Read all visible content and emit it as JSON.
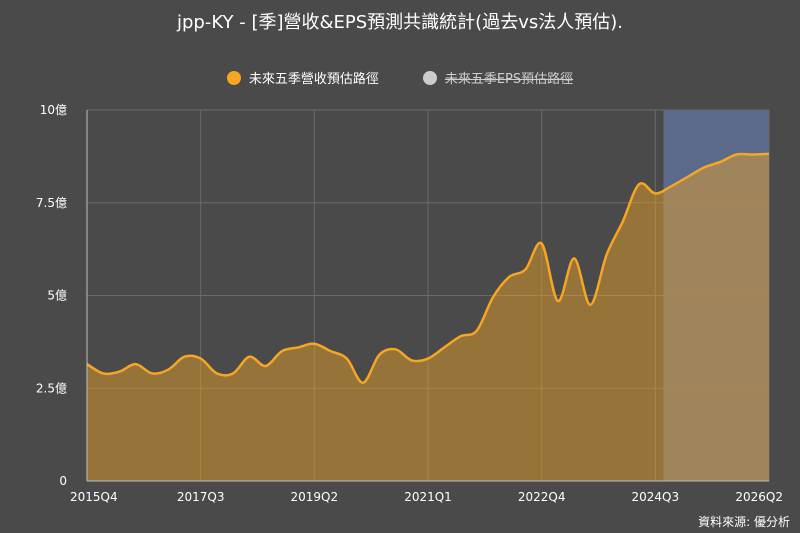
{
  "chart_data": {
    "type": "area",
    "title": "jpp-KY - [季]營收&EPS預測共識統計(過去vs法人預估).",
    "legend": [
      {
        "name": "未來五季營收預估路徑",
        "color": "#f5a623",
        "hidden": false
      },
      {
        "name": "未來五季EPS預估路徑",
        "color": "#cccccc",
        "hidden": true
      }
    ],
    "x_tick_labels": [
      "2015Q4",
      "2017Q3",
      "2019Q2",
      "2021Q1",
      "2022Q4",
      "2024Q3",
      "2026Q2"
    ],
    "y_tick_labels": [
      "0",
      "2.5億",
      "5億",
      "7.5億",
      "10億"
    ],
    "y_range": [
      0,
      10
    ],
    "y_unit": "億",
    "grid": true,
    "forecast_start": "2024Q4",
    "forecast_end": "2026Q2",
    "series": [
      {
        "name": "未來五季營收預估路徑",
        "color": "#f5a623",
        "x": [
          "2015Q4",
          "2016Q1",
          "2016Q2",
          "2016Q3",
          "2016Q4",
          "2017Q1",
          "2017Q2",
          "2017Q3",
          "2017Q4",
          "2018Q1",
          "2018Q2",
          "2018Q3",
          "2018Q4",
          "2019Q1",
          "2019Q2",
          "2019Q3",
          "2019Q4",
          "2020Q1",
          "2020Q2",
          "2020Q3",
          "2020Q4",
          "2021Q1",
          "2021Q2",
          "2021Q3",
          "2021Q4",
          "2022Q1",
          "2022Q2",
          "2022Q3",
          "2022Q4",
          "2023Q1",
          "2023Q2",
          "2023Q3",
          "2023Q4",
          "2024Q1",
          "2024Q2",
          "2024Q3",
          "2024Q4",
          "2025Q1",
          "2025Q2",
          "2025Q3",
          "2025Q4",
          "2026Q1",
          "2026Q2"
        ],
        "values": [
          3.15,
          2.9,
          2.95,
          3.15,
          2.9,
          3.0,
          3.35,
          3.3,
          2.9,
          2.9,
          3.35,
          3.1,
          3.5,
          3.6,
          3.7,
          3.5,
          3.3,
          2.65,
          3.4,
          3.55,
          3.25,
          3.3,
          3.6,
          3.9,
          4.05,
          4.95,
          5.5,
          5.7,
          6.4,
          4.85,
          6.0,
          4.75,
          6.1,
          7.0,
          8.0,
          7.75,
          7.95,
          8.2,
          8.45,
          8.6,
          8.8,
          8.8,
          8.82
        ]
      }
    ]
  },
  "source_note": "資料來源: 優分析"
}
